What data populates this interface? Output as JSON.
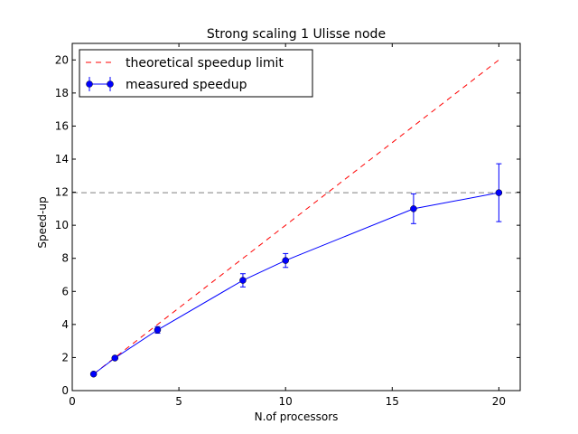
{
  "chart_data": {
    "type": "line",
    "title": "Strong scaling 1 Ulisse node",
    "xlabel": "N.of processors",
    "ylabel": "Speed-up",
    "xlim": [
      0,
      21
    ],
    "ylim": [
      0,
      21
    ],
    "xticks": [
      0,
      5,
      10,
      15,
      20
    ],
    "yticks": [
      0,
      2,
      4,
      6,
      8,
      10,
      12,
      14,
      16,
      18,
      20
    ],
    "grid": false,
    "legend_position": "upper-left",
    "series": [
      {
        "name": "theoretical speedup limit",
        "style": "dashed",
        "color": "#ff0000",
        "x": [
          1,
          20
        ],
        "y": [
          1,
          20
        ]
      },
      {
        "name": "measured speedup",
        "style": "solid-with-markers-and-errorbars",
        "color": "#0000ff",
        "x": [
          1,
          2,
          4,
          8,
          10,
          16,
          20
        ],
        "y": [
          1.0,
          1.97,
          3.67,
          6.67,
          7.87,
          11.0,
          11.97
        ],
        "error": [
          0.05,
          0.08,
          0.2,
          0.4,
          0.42,
          0.9,
          1.75
        ]
      },
      {
        "name": "",
        "style": "dashed",
        "color": "#808080",
        "x": [
          0,
          21
        ],
        "y": [
          11.97,
          11.97
        ]
      }
    ]
  }
}
